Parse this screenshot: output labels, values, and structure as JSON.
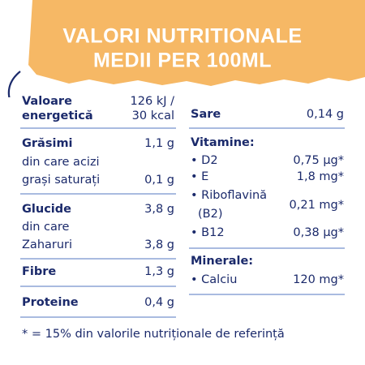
{
  "header": {
    "title_lines": [
      "VALORI NUTRITIONALE",
      "MEDII PER 100ML"
    ]
  },
  "left": {
    "energy": {
      "label": [
        "Valoare",
        "energetică"
      ],
      "value": [
        "126 kJ /",
        "30 kcal"
      ]
    },
    "fat": {
      "label": "Grăsimi",
      "value": "1,1 g",
      "sub": {
        "label": [
          "din care acizi",
          "grași saturați"
        ],
        "value": "0,1 g"
      }
    },
    "carbs": {
      "label": "Glucide",
      "value": "3,8 g",
      "sub": {
        "label": [
          "din care",
          "Zaharuri"
        ],
        "value": "3,8 g"
      }
    },
    "fibre": {
      "label": "Fibre",
      "value": "1,3 g"
    },
    "protein": {
      "label": "Proteine",
      "value": "0,4 g"
    }
  },
  "right": {
    "salt": {
      "label": "Sare",
      "value": "0,14 g"
    },
    "vitamins": {
      "title": "Vitamine:",
      "items": [
        {
          "label": [
            "• D2"
          ],
          "value": "0,75 µg*"
        },
        {
          "label": [
            "• E"
          ],
          "value": "1,8 mg*"
        },
        {
          "label": [
            "• Riboflavină",
            "(B2)"
          ],
          "value": "0,21 mg*"
        },
        {
          "label": [
            "• B12"
          ],
          "value": "0,38 µg*"
        }
      ]
    },
    "minerals": {
      "title": "Minerale:",
      "items": [
        {
          "label": [
            "• Calciu"
          ],
          "value": "120 mg*"
        }
      ]
    }
  },
  "footnote": "* = 15% din valorile nutriționale de referință"
}
